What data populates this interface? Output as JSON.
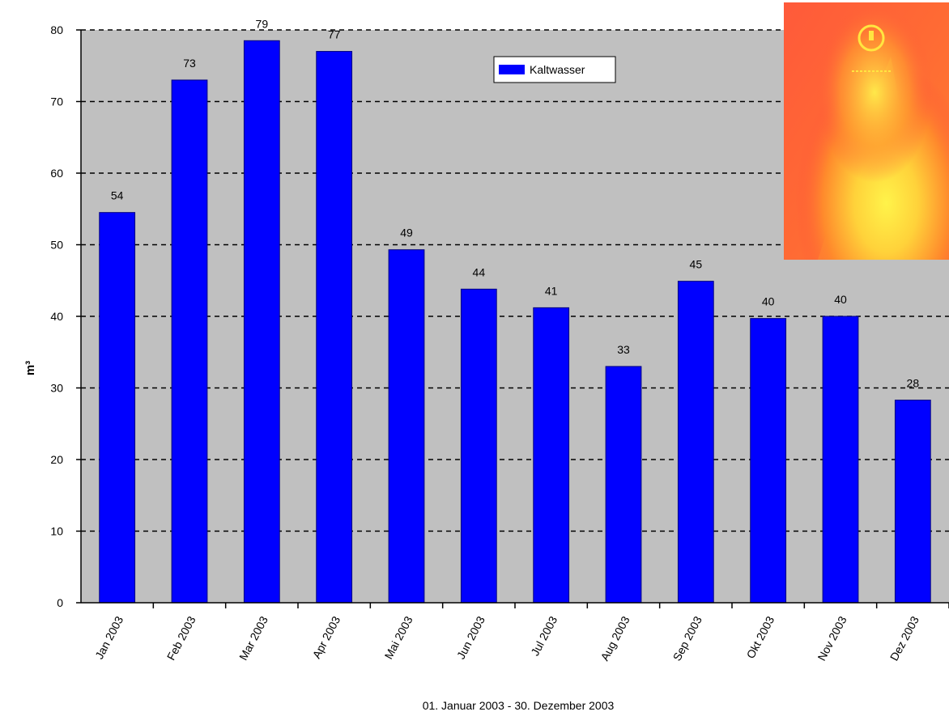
{
  "chart_data": {
    "type": "bar",
    "title": "",
    "xlabel": "01. Januar 2003 - 30. Dezember 2003",
    "ylabel": "m³",
    "ylim": [
      0,
      80
    ],
    "yticks": [
      "0",
      "10",
      "20",
      "30",
      "40",
      "50",
      "60",
      "70",
      "80"
    ],
    "grid": "horizontal dashed",
    "legend_position": "top",
    "categories": [
      "Jan 2003",
      "Feb 2003",
      "Mar 2003",
      "Apr 2003",
      "Mai 2003",
      "Jun 2003",
      "Jul 2003",
      "Aug 2003",
      "Sep 2003",
      "Okt 2003",
      "Nov 2003",
      "Dez 2003"
    ],
    "series": [
      {
        "name": "Kaltwasser",
        "values": [
          54.5,
          73,
          78.5,
          77,
          49.3,
          43.8,
          41.2,
          33,
          44.9,
          39.7,
          40,
          28.3
        ],
        "labels": [
          "54",
          "73",
          "79",
          "77",
          "49",
          "44",
          "41",
          "33",
          "45",
          "40",
          "40",
          "28"
        ],
        "color": "#0000ff"
      }
    ],
    "plot_background": "#c0c0c0",
    "grid_color": "#000000"
  },
  "overlay_image": {
    "description_icon": "flame-image",
    "colors": [
      "#ff4a3a",
      "#ff8c2a",
      "#ffe640"
    ]
  }
}
